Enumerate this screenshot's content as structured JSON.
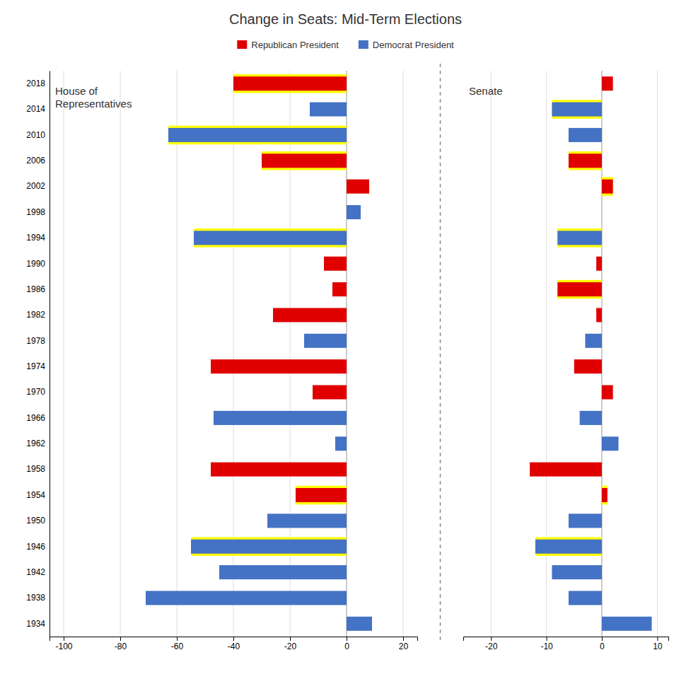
{
  "chart_data": [
    {
      "type": "bar",
      "orientation": "horizontal",
      "stacked": true,
      "grid": true,
      "title": "Change in Seats: Mid-Term Elections",
      "annotation": "House of\nRepresentatives",
      "categories": [
        "2018",
        "2014",
        "2010",
        "2006",
        "2002",
        "1998",
        "1994",
        "1990",
        "1986",
        "1982",
        "1978",
        "1974",
        "1970",
        "1966",
        "1962",
        "1958",
        "1954",
        "1950",
        "1946",
        "1942",
        "1938",
        "1934"
      ],
      "series": [
        {
          "name": "Republican President",
          "color": "#e00000",
          "values": [
            -40,
            null,
            null,
            -30,
            8,
            null,
            null,
            -8,
            -5,
            -26,
            null,
            -48,
            -12,
            null,
            null,
            -48,
            -18,
            null,
            null,
            null,
            null,
            null
          ]
        },
        {
          "name": "Democrat President",
          "color": "#4472c4",
          "values": [
            null,
            -13,
            -63,
            null,
            null,
            5,
            -54,
            null,
            null,
            null,
            -15,
            null,
            null,
            -47,
            -4,
            null,
            null,
            -28,
            -55,
            -45,
            -71,
            9
          ]
        }
      ],
      "highlighted": [
        true,
        false,
        true,
        true,
        false,
        false,
        true,
        false,
        false,
        false,
        false,
        false,
        false,
        false,
        false,
        false,
        true,
        false,
        true,
        false,
        false,
        false
      ],
      "highlight_color": "#ffff00",
      "xlim": [
        -105,
        25
      ],
      "xticks": [
        -100,
        -80,
        -60,
        -40,
        -20,
        0,
        20
      ]
    },
    {
      "type": "bar",
      "orientation": "horizontal",
      "stacked": true,
      "grid": true,
      "annotation": "Senate",
      "tick_labels": "x",
      "categories": [
        "2018",
        "2014",
        "2010",
        "2006",
        "2002",
        "1998",
        "1994",
        "1990",
        "1986",
        "1982",
        "1978",
        "1974",
        "1970",
        "1966",
        "1962",
        "1958",
        "1954",
        "1950",
        "1946",
        "1942",
        "1938",
        "1934"
      ],
      "series": [
        {
          "name": "Republican President",
          "color": "#e00000",
          "values": [
            2,
            null,
            null,
            -6,
            2,
            null,
            null,
            -1,
            -8,
            -1,
            null,
            -5,
            2,
            null,
            null,
            -13,
            1,
            null,
            null,
            null,
            null,
            null
          ]
        },
        {
          "name": "Democrat President",
          "color": "#4472c4",
          "values": [
            null,
            -9,
            -6,
            null,
            null,
            0,
            -8,
            null,
            null,
            null,
            -3,
            null,
            null,
            -4,
            3,
            null,
            null,
            -6,
            -12,
            -9,
            -6,
            9
          ]
        }
      ],
      "highlighted": [
        false,
        true,
        false,
        true,
        true,
        false,
        true,
        false,
        true,
        false,
        false,
        false,
        false,
        false,
        false,
        false,
        true,
        false,
        true,
        false,
        false,
        false
      ],
      "highlight_color": "#ffff00",
      "xlim": [
        -25,
        12
      ],
      "xticks": [
        -20,
        -10,
        0,
        10
      ]
    }
  ]
}
